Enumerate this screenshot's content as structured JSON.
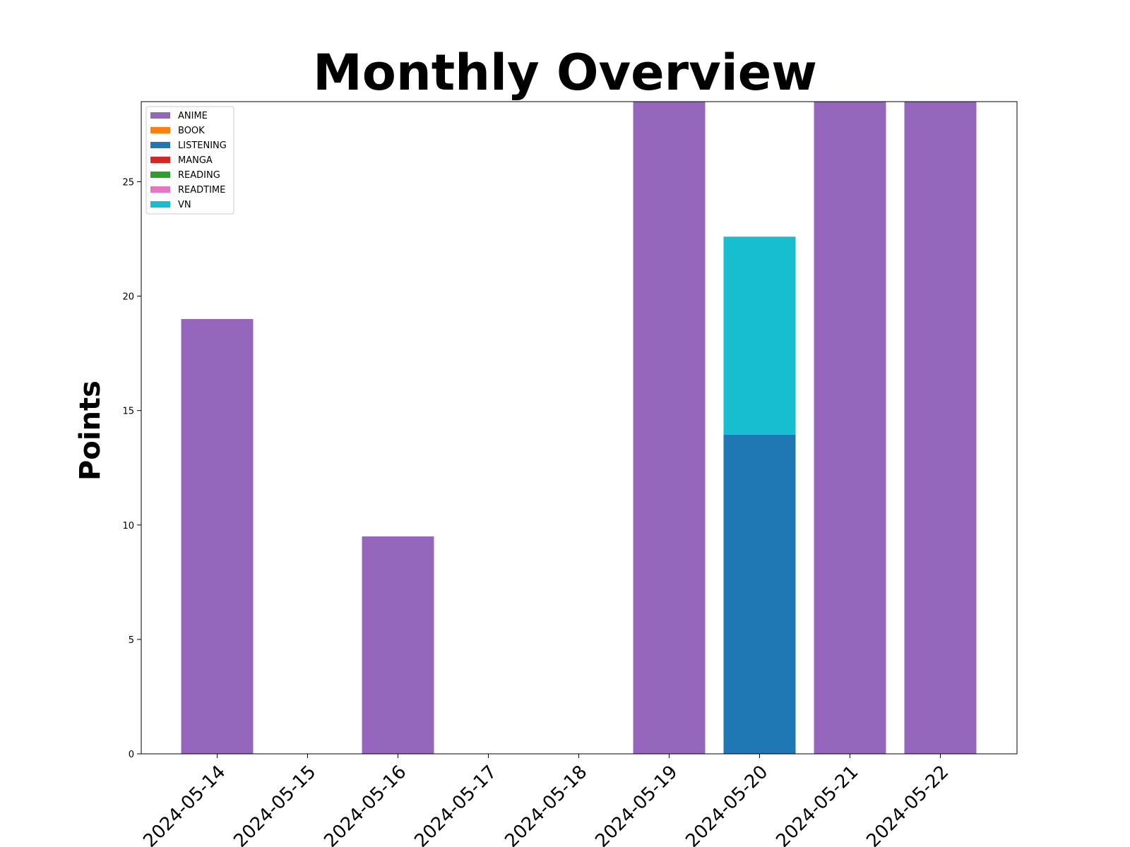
{
  "chart_data": {
    "type": "bar",
    "stacked": true,
    "title": "Monthly Overview",
    "xlabel": "",
    "ylabel": "Points",
    "ylim": [
      0,
      28.5
    ],
    "yticks": [
      0,
      5,
      10,
      15,
      20,
      25
    ],
    "grid": false,
    "legend_position": "top-left",
    "categories": [
      "2024-05-14",
      "2024-05-15",
      "2024-05-16",
      "2024-05-17",
      "2024-05-18",
      "2024-05-19",
      "2024-05-20",
      "2024-05-21",
      "2024-05-22"
    ],
    "series": [
      {
        "name": "ANIME",
        "color": "#9467bd",
        "values": [
          19.0,
          0,
          9.5,
          0,
          0,
          28.5,
          0,
          28.5,
          28.5
        ]
      },
      {
        "name": "BOOK",
        "color": "#ff7f0e",
        "values": [
          0,
          0,
          0,
          0,
          0,
          0,
          0,
          0,
          0
        ]
      },
      {
        "name": "LISTENING",
        "color": "#1f77b4",
        "values": [
          0,
          0,
          0,
          0,
          0,
          0,
          13.95,
          0,
          0
        ]
      },
      {
        "name": "MANGA",
        "color": "#d62728",
        "values": [
          0,
          0,
          0,
          0,
          0,
          0,
          0,
          0,
          0
        ]
      },
      {
        "name": "READING",
        "color": "#2ca02c",
        "values": [
          0,
          0,
          0,
          0,
          0,
          0,
          0,
          0,
          0
        ]
      },
      {
        "name": "READTIME",
        "color": "#e377c2",
        "values": [
          0,
          0,
          0,
          0,
          0,
          0,
          0,
          0,
          0
        ]
      },
      {
        "name": "VN",
        "color": "#17becf",
        "values": [
          0,
          0,
          0,
          0,
          0,
          0,
          8.65,
          0,
          0
        ]
      }
    ]
  }
}
